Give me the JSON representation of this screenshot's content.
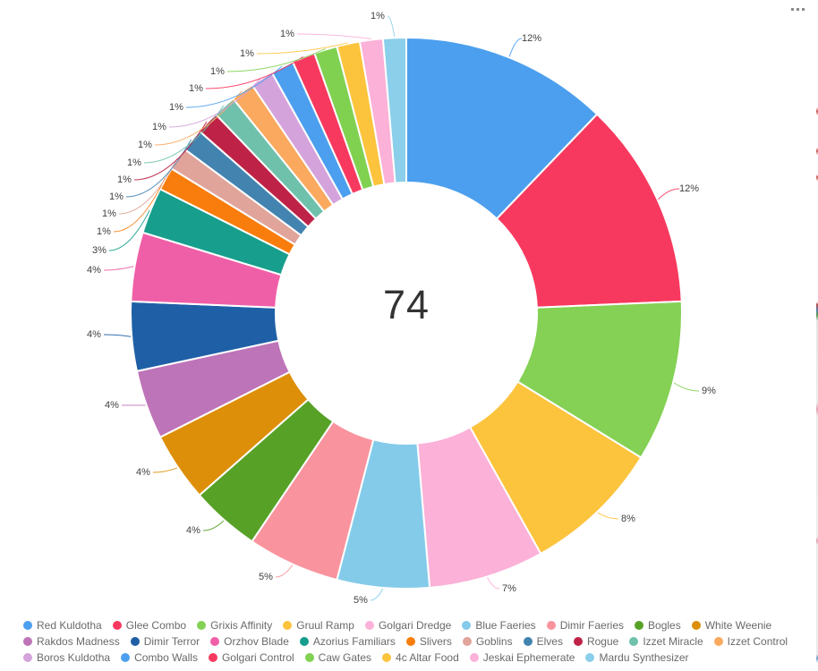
{
  "visual": {
    "more_options_icon": "ellipsis",
    "background": "#ffffff"
  },
  "chart_data": {
    "type": "pie",
    "donut": true,
    "inner_radius_ratio": 0.474,
    "title": "",
    "center_total": "74",
    "total": 74,
    "legend_position": "bottom",
    "slices": [
      {
        "label": "Red Kuldotha",
        "value": 9,
        "pct": "12%",
        "color": "#4C9FEE"
      },
      {
        "label": "Glee Combo",
        "value": 9,
        "pct": "12%",
        "color": "#F8395F"
      },
      {
        "label": "Grixis Affinity",
        "value": 7,
        "pct": "9%",
        "color": "#84D155"
      },
      {
        "label": "Gruul Ramp",
        "value": 6,
        "pct": "8%",
        "color": "#FCC33D"
      },
      {
        "label": "Golgari Dredge",
        "value": 5,
        "pct": "7%",
        "color": "#FBB1D8"
      },
      {
        "label": "Blue Faeries",
        "value": 4,
        "pct": "5%",
        "color": "#84CBEA"
      },
      {
        "label": "Dimir Faeries",
        "value": 4,
        "pct": "5%",
        "color": "#F9939E"
      },
      {
        "label": "Bogles",
        "value": 3,
        "pct": "4%",
        "color": "#57A127"
      },
      {
        "label": "White Weenie",
        "value": 3,
        "pct": "4%",
        "color": "#DD8F09"
      },
      {
        "label": "Rakdos Madness",
        "value": 3,
        "pct": "4%",
        "color": "#BE74B8"
      },
      {
        "label": "Dimir Terror",
        "value": 3,
        "pct": "4%",
        "color": "#1F5FA6"
      },
      {
        "label": "Orzhov Blade",
        "value": 3,
        "pct": "4%",
        "color": "#EF5FA7"
      },
      {
        "label": "Azorius Familiars",
        "value": 2,
        "pct": "3%",
        "color": "#179E8D"
      },
      {
        "label": "Slivers",
        "value": 1,
        "pct": "1%",
        "color": "#F97D0C"
      },
      {
        "label": "Goblins",
        "value": 1,
        "pct": "1%",
        "color": "#E0A49B"
      },
      {
        "label": "Elves",
        "value": 1,
        "pct": "1%",
        "color": "#4383B0"
      },
      {
        "label": "Rogue",
        "value": 1,
        "pct": "1%",
        "color": "#BE2347"
      },
      {
        "label": "Izzet Miracle",
        "value": 1,
        "pct": "1%",
        "color": "#70C1AC"
      },
      {
        "label": "Izzet Control",
        "value": 1,
        "pct": "1%",
        "color": "#FAA95E"
      },
      {
        "label": "Boros Kuldotha",
        "value": 1,
        "pct": "1%",
        "color": "#D5A3DB"
      },
      {
        "label": "Combo Walls",
        "value": 1,
        "pct": "1%",
        "color": "#4C9FEE"
      },
      {
        "label": "Golgari Control",
        "value": 1,
        "pct": "1%",
        "color": "#F8395F"
      },
      {
        "label": "Caw Gates",
        "value": 1,
        "pct": "1%",
        "color": "#80D150"
      },
      {
        "label": "4c Altar Food",
        "value": 1,
        "pct": "1%",
        "color": "#FCC43D"
      },
      {
        "label": "Jeskai Ephemerate",
        "value": 1,
        "pct": "1%",
        "color": "#FBB1D8"
      },
      {
        "label": "Mardu Synthesizer",
        "value": 1,
        "pct": "1%",
        "color": "#8BCFEA"
      }
    ]
  }
}
